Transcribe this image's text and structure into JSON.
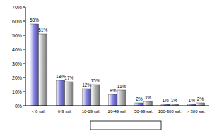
{
  "chart_data": {
    "type": "bar",
    "categories": [
      "< 6 sal.",
      "6-9 sal.",
      "10-19 sal.",
      "20-49 sal.",
      "50-99 sal.",
      "100-300 sal.",
      "> 300 sal."
    ],
    "series": [
      {
        "color": "#8a8ae6",
        "values": [
          58,
          18,
          12,
          8,
          2,
          1,
          1
        ],
        "value_labels": [
          "58%",
          "18%",
          "12%",
          "8%",
          "2%",
          "1%",
          "1%"
        ]
      },
      {
        "color": "#b8b8b8",
        "values": [
          51,
          17,
          15,
          11,
          3,
          1,
          2
        ],
        "value_labels": [
          "51%",
          "17%",
          "15%",
          "11%",
          "3%",
          "1%",
          "2%"
        ]
      }
    ],
    "ylim": [
      0,
      70
    ],
    "yticks": [
      {
        "value": 0,
        "label": "0%"
      },
      {
        "value": 10,
        "label": "10%"
      },
      {
        "value": 20,
        "label": "20%"
      },
      {
        "value": 30,
        "label": "30%"
      },
      {
        "value": 40,
        "label": "40%"
      },
      {
        "value": 50,
        "label": "50%"
      },
      {
        "value": 60,
        "label": "60%"
      },
      {
        "value": 70,
        "label": "70%"
      }
    ],
    "grid": false,
    "data_labels": true
  }
}
